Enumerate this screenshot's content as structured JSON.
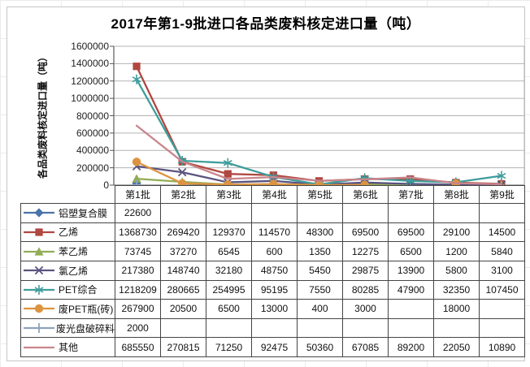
{
  "title": "2017年第1-9批进口各品类废料核定进口量（吨）",
  "chart_data": {
    "type": "line",
    "title": "2017年第1-9批进口各品类废料核定进口量（吨）",
    "xlabel": "",
    "ylabel": "各品类废料核定进口量（吨）",
    "ylim": [
      0,
      1600000
    ],
    "yticks": [
      0,
      200000,
      400000,
      600000,
      800000,
      1000000,
      1200000,
      1400000,
      1600000
    ],
    "grid": true,
    "legend_position": "table-left",
    "categories": [
      "第1批",
      "第2批",
      "第3批",
      "第4批",
      "第5批",
      "第6批",
      "第7批",
      "第8批",
      "第9批"
    ],
    "series": [
      {
        "name": "铝塑复合膜",
        "color": "#4a73a8",
        "marker": "diamond-icon",
        "values": [
          22600,
          null,
          null,
          null,
          null,
          null,
          null,
          null,
          null
        ]
      },
      {
        "name": "乙烯",
        "color": "#b04740",
        "marker": "square-icon",
        "values": [
          1368730,
          269420,
          129370,
          114570,
          48300,
          69500,
          69500,
          29100,
          14500
        ]
      },
      {
        "name": "苯乙烯",
        "color": "#92ad57",
        "marker": "triangle-icon",
        "values": [
          73745,
          37270,
          6545,
          600,
          1350,
          12275,
          6500,
          1200,
          5840
        ]
      },
      {
        "name": "氯乙烯",
        "color": "#5a5480",
        "marker": "x-icon",
        "values": [
          217380,
          148740,
          32180,
          48750,
          5450,
          29875,
          13900,
          5800,
          3100
        ]
      },
      {
        "name": "PET综合",
        "color": "#3e9d9b",
        "marker": "asterisk-icon",
        "values": [
          1218209,
          280665,
          254995,
          95195,
          7550,
          80285,
          47900,
          32350,
          107450
        ]
      },
      {
        "name": "废PET瓶(砖)",
        "color": "#dd9440",
        "marker": "circle-icon",
        "values": [
          267900,
          20500,
          6500,
          13000,
          400,
          3000,
          null,
          18000,
          null
        ]
      },
      {
        "name": "废光盘破碎料",
        "color": "#8fa3bd",
        "marker": "plus-icon",
        "values": [
          2000,
          null,
          null,
          null,
          null,
          null,
          null,
          null,
          null
        ]
      },
      {
        "name": "其他",
        "color": "#c9858c",
        "marker": "none",
        "values": [
          685550,
          270815,
          71250,
          92475,
          50360,
          67085,
          89200,
          22050,
          10890
        ]
      }
    ],
    "axis_colors": {
      "gridline": "#b3b3b3",
      "axis_line": "#595959"
    }
  }
}
